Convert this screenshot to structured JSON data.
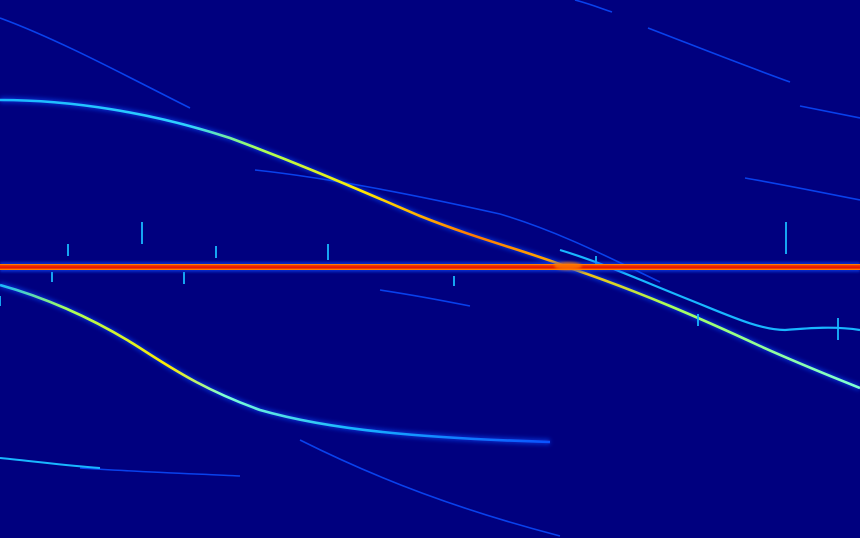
{
  "image": {
    "kind": "spectrogram",
    "colormap": "jet",
    "colors": {
      "background": "#00007f",
      "faint_trace": "#0a4cff",
      "trace": "#19b7ff",
      "trace_bright": "#7fffd4",
      "peak_yellow": "#ffe800",
      "peak_orange": "#ff7a00",
      "peak_red": "#d40000"
    },
    "features": [
      "horizontal-constant-tone-line",
      "descending-chirp-upper",
      "descending-chirp-lower",
      "faint-chirp-traces",
      "short-vertical-impulses"
    ]
  }
}
